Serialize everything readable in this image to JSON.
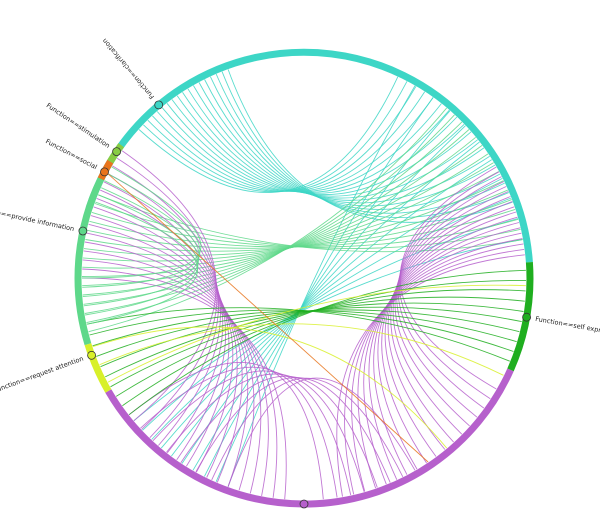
{
  "diagram": {
    "type": "chord",
    "groups": [
      {
        "id": "clarification",
        "label": "Function==clarification",
        "color": "#3dd6c6",
        "start": -72,
        "end": 86
      },
      {
        "id": "self",
        "label": "Function==self expression",
        "color": "#1fae1f",
        "start": 86,
        "end": 114
      },
      {
        "id": "purple",
        "label": "",
        "color": "#b660cc",
        "start": 114,
        "end": 240
      },
      {
        "id": "attention",
        "label": "Function==request attention",
        "color": "#d8f02a",
        "start": 240,
        "end": 253
      },
      {
        "id": "information",
        "label": "Function==provide information",
        "color": "#5ed88a",
        "start": 253,
        "end": 296
      },
      {
        "id": "social",
        "label": "Function==social",
        "color": "#e8741c",
        "start": 296,
        "end": 301
      },
      {
        "id": "stimulation",
        "label": "Function==stimulation",
        "color": "#88cc44",
        "start": 301,
        "end": 306
      }
    ],
    "nodes": [
      {
        "label_ref": "clarification",
        "angle": -40,
        "color": "#3dd6c6"
      },
      {
        "label_ref": "self",
        "angle": 100,
        "color": "#1fae1f"
      },
      {
        "label_ref": "purple",
        "angle": 180,
        "color": "#b660cc"
      },
      {
        "label_ref": "attention",
        "angle": 250,
        "color": "#d8f02a"
      },
      {
        "label_ref": "information",
        "angle": 282,
        "color": "#5ed88a"
      },
      {
        "label_ref": "social",
        "angle": 298,
        "color": "#e8741c"
      },
      {
        "label_ref": "stimulation",
        "angle": 304,
        "color": "#88cc44"
      }
    ],
    "bundles": [
      {
        "from": "clarification",
        "to": "clarification",
        "color": "#3dd6c6",
        "count": 18,
        "a0": -48,
        "a1": -20,
        "b0": 25,
        "b1": 70
      },
      {
        "from": "clarification",
        "to": "information",
        "color": "#3dd6c6",
        "count": 10,
        "a0": 30,
        "a1": 80,
        "b0": 200,
        "b1": 230
      },
      {
        "from": "information",
        "to": "clarification",
        "color": "#5ed88a",
        "count": 16,
        "a0": 256,
        "a1": 292,
        "b0": 40,
        "b1": 80
      },
      {
        "from": "purple",
        "to": "clarification",
        "color": "#b660cc",
        "count": 18,
        "a0": 120,
        "a1": 170,
        "b0": 60,
        "b1": 84
      },
      {
        "from": "purple",
        "to": "information",
        "color": "#b660cc",
        "count": 16,
        "a0": 185,
        "a1": 230,
        "b0": 270,
        "b1": 305
      },
      {
        "from": "purple",
        "to": "purple",
        "color": "#b660cc",
        "count": 8,
        "a0": 200,
        "a1": 232,
        "b0": 150,
        "b1": 175
      },
      {
        "from": "self",
        "to": "information",
        "color": "#1fae1f",
        "count": 10,
        "a0": 88,
        "a1": 112,
        "b0": 232,
        "b1": 258
      },
      {
        "from": "attention",
        "to": "clarification",
        "color": "#d8f02a",
        "count": 3,
        "a0": 242,
        "a1": 252,
        "b0": 92,
        "b1": 140
      },
      {
        "from": "information",
        "to": "information",
        "color": "#5ed88a",
        "count": 6,
        "a0": 258,
        "a1": 270,
        "b0": 290,
        "b1": 300
      },
      {
        "from": "social",
        "to": "purple",
        "color": "#e8741c",
        "count": 1,
        "a0": 298,
        "a1": 298,
        "b0": 146,
        "b1": 146
      }
    ]
  }
}
